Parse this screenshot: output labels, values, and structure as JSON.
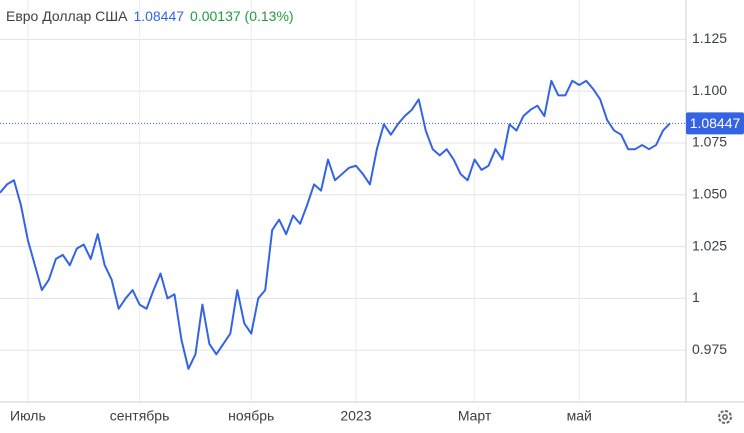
{
  "chart_data": {
    "type": "line",
    "title": "Евро Доллар США",
    "current_value": 1.08447,
    "change": "0.00137 (0.13%)",
    "categories": [
      null,
      null,
      null,
      null,
      "Июль",
      null,
      null,
      null,
      null,
      null,
      null,
      null,
      null,
      null,
      null,
      null,
      null,
      null,
      null,
      null,
      "сентябрь",
      null,
      null,
      null,
      null,
      null,
      null,
      null,
      null,
      null,
      null,
      null,
      null,
      null,
      null,
      null,
      "ноябрь",
      null,
      null,
      null,
      null,
      null,
      null,
      null,
      null,
      null,
      null,
      null,
      null,
      null,
      null,
      "2023",
      null,
      null,
      null,
      null,
      null,
      null,
      null,
      null,
      null,
      null,
      null,
      null,
      null,
      null,
      null,
      null,
      "Март",
      null,
      null,
      null,
      null,
      null,
      null,
      null,
      null,
      null,
      null,
      null,
      null,
      null,
      null,
      "май",
      null,
      null,
      null,
      null,
      null,
      null,
      null,
      null,
      null,
      null,
      null,
      null,
      null
    ],
    "series": [
      {
        "name": "Евро Доллар США",
        "color": "#3464e4",
        "values": [
          1.051,
          1.055,
          1.057,
          1.045,
          1.028,
          1.016,
          1.004,
          1.009,
          1.019,
          1.021,
          1.016,
          1.024,
          1.026,
          1.019,
          1.031,
          1.016,
          1.009,
          0.995,
          1.0,
          1.004,
          0.997,
          0.995,
          1.004,
          1.012,
          1.0,
          1.002,
          0.98,
          0.966,
          0.973,
          0.997,
          0.978,
          0.973,
          0.978,
          0.983,
          1.004,
          0.988,
          0.983,
          1.0,
          1.004,
          1.033,
          1.038,
          1.031,
          1.04,
          1.036,
          1.045,
          1.055,
          1.052,
          1.067,
          1.057,
          1.06,
          1.063,
          1.064,
          1.06,
          1.055,
          1.072,
          1.084,
          1.079,
          1.084,
          1.088,
          1.091,
          1.096,
          1.081,
          1.072,
          1.069,
          1.072,
          1.067,
          1.06,
          1.057,
          1.067,
          1.062,
          1.064,
          1.072,
          1.067,
          1.084,
          1.081,
          1.088,
          1.091,
          1.093,
          1.088,
          1.105,
          1.098,
          1.098,
          1.105,
          1.103,
          1.105,
          1.101,
          1.096,
          1.086,
          1.081,
          1.079,
          1.072,
          1.072,
          1.074,
          1.072,
          1.074,
          1.081,
          1.08447
        ]
      }
    ],
    "ylim": [
      0.95,
      1.144
    ],
    "yticks": [
      0.975,
      1,
      1.025,
      {
        "value": 1.05,
        "label": "1.050"
      },
      1.075,
      {
        "value": 1.1,
        "label": "1.100"
      },
      1.125
    ],
    "grid": true
  }
}
